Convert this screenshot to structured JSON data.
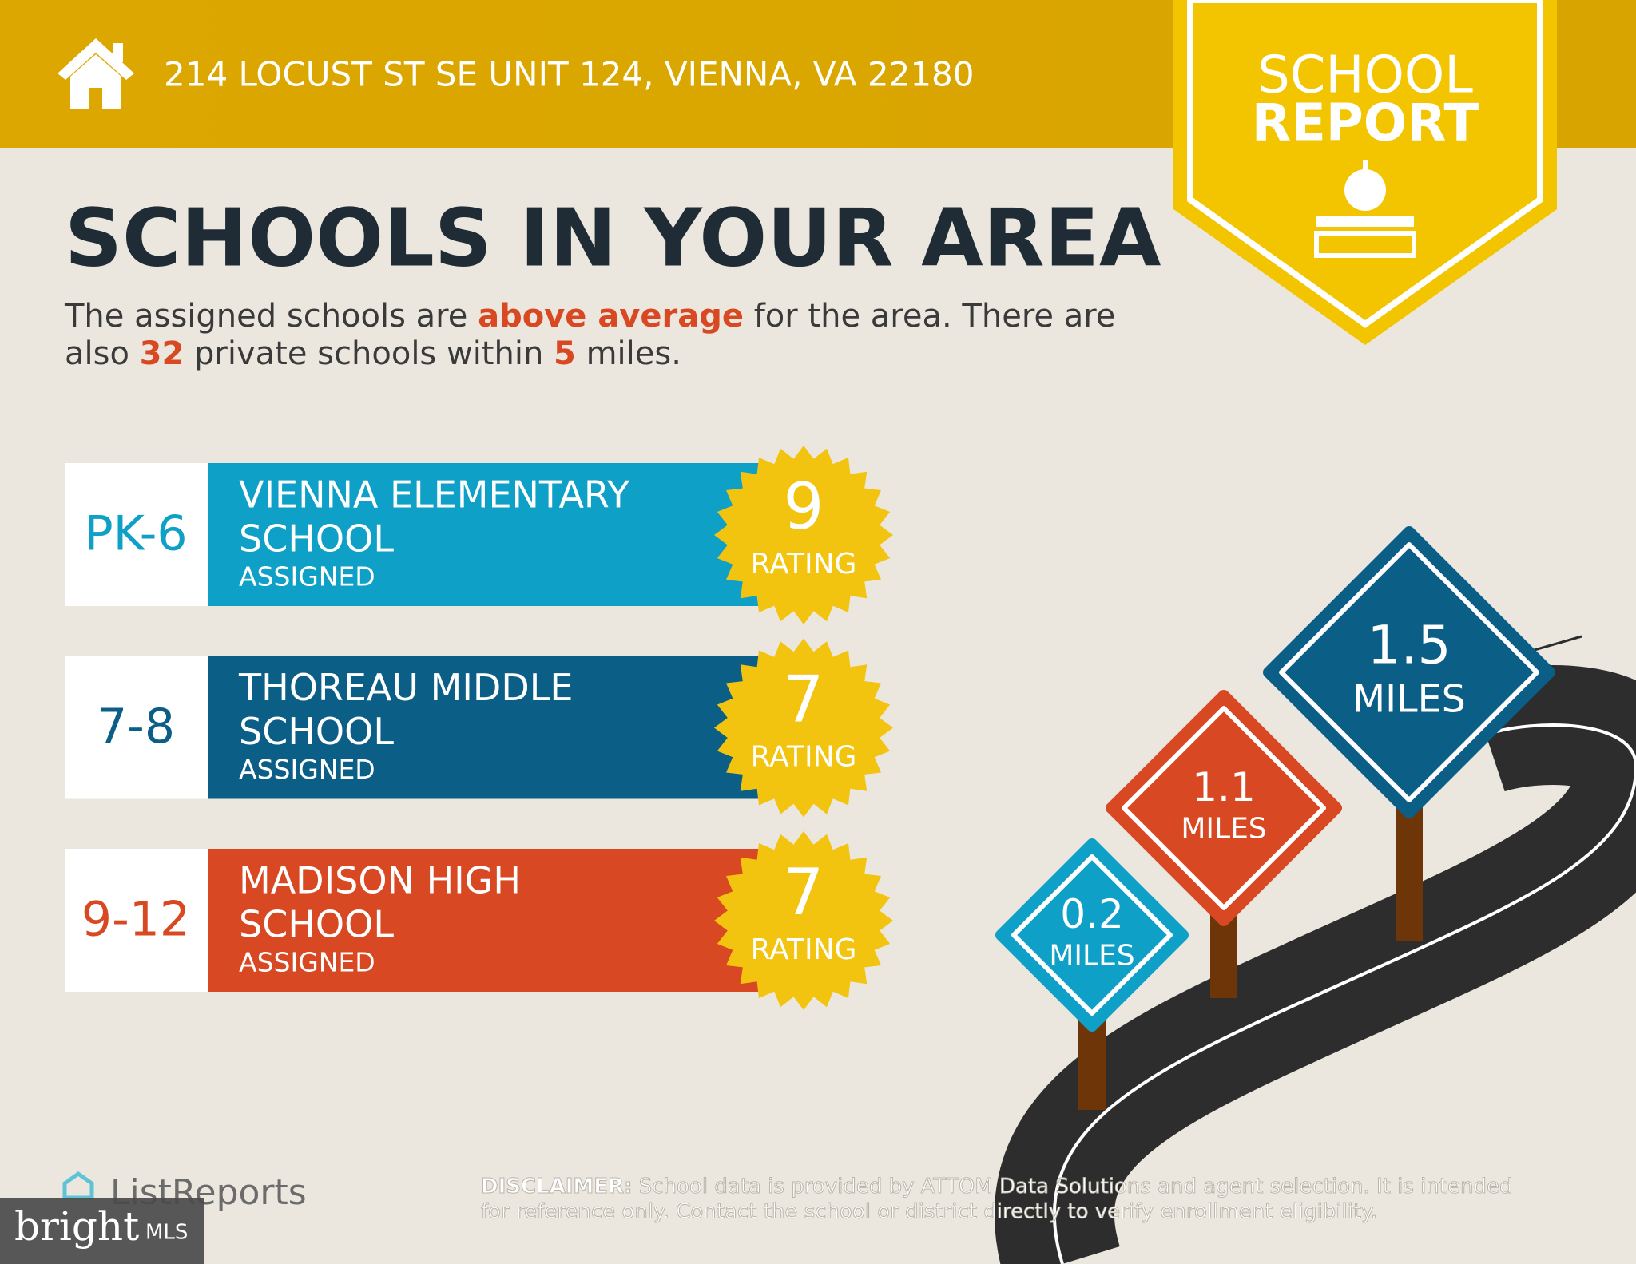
{
  "header": {
    "address": "214 LOCUST ST SE UNIT 124, VIENNA, VA 22180",
    "badge_line1": "SCHOOL",
    "badge_line2": "REPORT"
  },
  "title": "SCHOOLS IN YOUR AREA",
  "summary": {
    "part1": "The assigned schools are ",
    "highlight": "above average",
    "part2": " for the area. There are",
    "part3": "also ",
    "private_count": 32,
    "part4": " private schools within ",
    "radius": 5,
    "part5": " miles."
  },
  "schools": [
    {
      "grades": "PK-6",
      "name_line1": "VIENNA ELEMENTARY",
      "name_line2": "SCHOOL",
      "status": "ASSIGNED",
      "rating": 9,
      "rating_label": "RATING",
      "color": "#0fa0c7"
    },
    {
      "grades": "7-8",
      "name_line1": "THOREAU MIDDLE",
      "name_line2": "SCHOOL",
      "status": "ASSIGNED",
      "rating": 7,
      "rating_label": "RATING",
      "color": "#0b5e86"
    },
    {
      "grades": "9-12",
      "name_line1": "MADISON HIGH",
      "name_line2": "SCHOOL",
      "status": "ASSIGNED",
      "rating": 7,
      "rating_label": "RATING",
      "color": "#d84822"
    }
  ],
  "distances": [
    {
      "value": 0.2,
      "unit": "MILES",
      "color": "#0fa0c7"
    },
    {
      "value": 1.1,
      "unit": "MILES",
      "color": "#d84822"
    },
    {
      "value": 1.5,
      "unit": "MILES",
      "color": "#0b5e86"
    }
  ],
  "brand": "ListReports",
  "watermark": {
    "brand": "bright",
    "suffix": "MLS"
  },
  "disclaimer": {
    "label": "DISCLAIMER:",
    "line1": " School data is provided by ATTOM Data Solutions and agent selection. It is intended",
    "line2": "for reference only. Contact the school or district directly to verify enrollment eligibility."
  }
}
